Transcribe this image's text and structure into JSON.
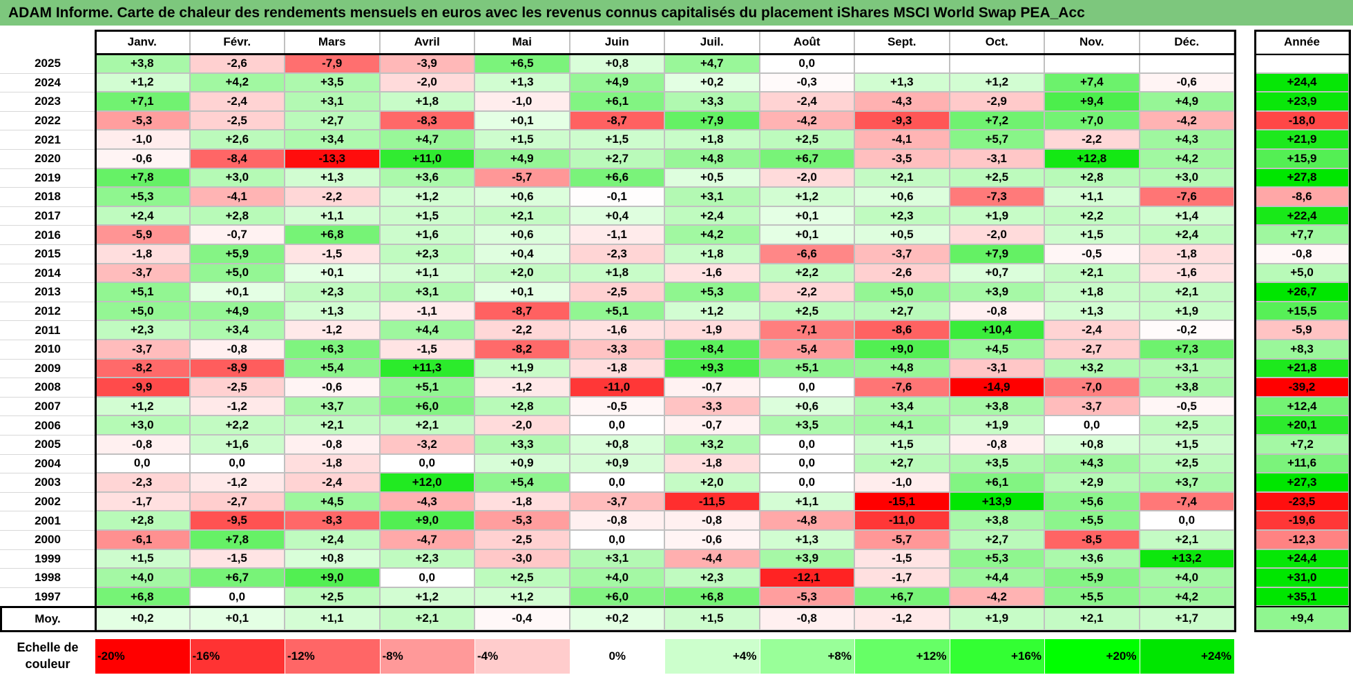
{
  "title": "ADAM Informe. Carte de chaleur des rendements mensuels en euros avec les revenus connus capitalisés du placement iShares MSCI World Swap PEA_Acc",
  "chart_data": {
    "type": "heatmap",
    "title": "ADAM Informe. Carte de chaleur des rendements mensuels en euros avec les revenus connus capitalisés du placement iShares MSCI World Swap PEA_Acc",
    "months": [
      "Janv.",
      "Févr.",
      "Mars",
      "Avril",
      "Mai",
      "Juin",
      "Juil.",
      "Août",
      "Sept.",
      "Oct.",
      "Nov.",
      "Déc."
    ],
    "annual_header": "Année",
    "average_label": "Moy.",
    "rows": [
      {
        "year": "2025",
        "values": [
          "+3,8",
          "-2,6",
          "-7,9",
          "-3,9",
          "+6,5",
          "+0,8",
          "+4,7",
          "0,0",
          "",
          "",
          "",
          ""
        ],
        "annual": ""
      },
      {
        "year": "2024",
        "values": [
          "+1,2",
          "+4,2",
          "+3,5",
          "-2,0",
          "+1,3",
          "+4,9",
          "+0,2",
          "-0,3",
          "+1,3",
          "+1,2",
          "+7,4",
          "-0,6"
        ],
        "annual": "+24,4"
      },
      {
        "year": "2023",
        "values": [
          "+7,1",
          "-2,4",
          "+3,1",
          "+1,8",
          "-1,0",
          "+6,1",
          "+3,3",
          "-2,4",
          "-4,3",
          "-2,9",
          "+9,4",
          "+4,9"
        ],
        "annual": "+23,9"
      },
      {
        "year": "2022",
        "values": [
          "-5,3",
          "-2,5",
          "+2,7",
          "-8,3",
          "+0,1",
          "-8,7",
          "+7,9",
          "-4,2",
          "-9,3",
          "+7,2",
          "+7,0",
          "-4,2"
        ],
        "annual": "-18,0"
      },
      {
        "year": "2021",
        "values": [
          "-1,0",
          "+2,6",
          "+3,4",
          "+4,7",
          "+1,5",
          "+1,5",
          "+1,8",
          "+2,5",
          "-4,1",
          "+5,7",
          "-2,2",
          "+4,3"
        ],
        "annual": "+21,9"
      },
      {
        "year": "2020",
        "values": [
          "-0,6",
          "-8,4",
          "-13,3",
          "+11,0",
          "+4,9",
          "+2,7",
          "+4,8",
          "+6,7",
          "-3,5",
          "-3,1",
          "+12,8",
          "+4,2"
        ],
        "annual": "+15,9"
      },
      {
        "year": "2019",
        "values": [
          "+7,8",
          "+3,0",
          "+1,3",
          "+3,6",
          "-5,7",
          "+6,6",
          "+0,5",
          "-2,0",
          "+2,1",
          "+2,5",
          "+2,8",
          "+3,0"
        ],
        "annual": "+27,8"
      },
      {
        "year": "2018",
        "values": [
          "+5,3",
          "-4,1",
          "-2,2",
          "+1,2",
          "+0,6",
          "-0,1",
          "+3,1",
          "+1,2",
          "+0,6",
          "-7,3",
          "+1,1",
          "-7,6"
        ],
        "annual": "-8,6"
      },
      {
        "year": "2017",
        "values": [
          "+2,4",
          "+2,8",
          "+1,1",
          "+1,5",
          "+2,1",
          "+0,4",
          "+2,4",
          "+0,1",
          "+2,3",
          "+1,9",
          "+2,2",
          "+1,4"
        ],
        "annual": "+22,4"
      },
      {
        "year": "2016",
        "values": [
          "-5,9",
          "-0,7",
          "+6,8",
          "+1,6",
          "+0,6",
          "-1,1",
          "+4,2",
          "+0,1",
          "+0,5",
          "-2,0",
          "+1,5",
          "+2,4"
        ],
        "annual": "+7,7"
      },
      {
        "year": "2015",
        "values": [
          "-1,8",
          "+5,9",
          "-1,5",
          "+2,3",
          "+0,4",
          "-2,3",
          "+1,8",
          "-6,6",
          "-3,7",
          "+7,9",
          "-0,5",
          "-1,8"
        ],
        "annual": "-0,8"
      },
      {
        "year": "2014",
        "values": [
          "-3,7",
          "+5,0",
          "+0,1",
          "+1,1",
          "+2,0",
          "+1,8",
          "-1,6",
          "+2,2",
          "-2,6",
          "+0,7",
          "+2,1",
          "-1,6"
        ],
        "annual": "+5,0"
      },
      {
        "year": "2013",
        "values": [
          "+5,1",
          "+0,1",
          "+2,3",
          "+3,1",
          "+0,1",
          "-2,5",
          "+5,3",
          "-2,2",
          "+5,0",
          "+3,9",
          "+1,8",
          "+2,1"
        ],
        "annual": "+26,7"
      },
      {
        "year": "2012",
        "values": [
          "+5,0",
          "+4,9",
          "+1,3",
          "-1,1",
          "-8,7",
          "+5,1",
          "+1,2",
          "+2,5",
          "+2,7",
          "-0,8",
          "+1,3",
          "+1,9"
        ],
        "annual": "+15,5"
      },
      {
        "year": "2011",
        "values": [
          "+2,3",
          "+3,4",
          "-1,2",
          "+4,4",
          "-2,2",
          "-1,6",
          "-1,9",
          "-7,1",
          "-8,6",
          "+10,4",
          "-2,4",
          "-0,2"
        ],
        "annual": "-5,9"
      },
      {
        "year": "2010",
        "values": [
          "-3,7",
          "-0,8",
          "+6,3",
          "-1,5",
          "-8,2",
          "-3,3",
          "+8,4",
          "-5,4",
          "+9,0",
          "+4,5",
          "-2,7",
          "+7,3"
        ],
        "annual": "+8,3"
      },
      {
        "year": "2009",
        "values": [
          "-8,2",
          "-8,9",
          "+5,4",
          "+11,3",
          "+1,9",
          "-1,8",
          "+9,3",
          "+5,1",
          "+4,8",
          "-3,1",
          "+3,2",
          "+3,1"
        ],
        "annual": "+21,8"
      },
      {
        "year": "2008",
        "values": [
          "-9,9",
          "-2,5",
          "-0,6",
          "+5,1",
          "-1,2",
          "-11,0",
          "-0,7",
          "0,0",
          "-7,6",
          "-14,9",
          "-7,0",
          "+3,8"
        ],
        "annual": "-39,2"
      },
      {
        "year": "2007",
        "values": [
          "+1,2",
          "-1,2",
          "+3,7",
          "+6,0",
          "+2,8",
          "-0,5",
          "-3,3",
          "+0,6",
          "+3,4",
          "+3,8",
          "-3,7",
          "-0,5"
        ],
        "annual": "+12,4"
      },
      {
        "year": "2006",
        "values": [
          "+3,0",
          "+2,2",
          "+2,1",
          "+2,1",
          "-2,0",
          "0,0",
          "-0,7",
          "+3,5",
          "+4,1",
          "+1,9",
          "0,0",
          "+2,5"
        ],
        "annual": "+20,1"
      },
      {
        "year": "2005",
        "values": [
          "-0,8",
          "+1,6",
          "-0,8",
          "-3,2",
          "+3,3",
          "+0,8",
          "+3,2",
          "0,0",
          "+1,5",
          "-0,8",
          "+0,8",
          "+1,5"
        ],
        "annual": "+7,2"
      },
      {
        "year": "2004",
        "values": [
          "0,0",
          "0,0",
          "-1,8",
          "0,0",
          "+0,9",
          "+0,9",
          "-1,8",
          "0,0",
          "+2,7",
          "+3,5",
          "+4,3",
          "+2,5"
        ],
        "annual": "+11,6"
      },
      {
        "year": "2003",
        "values": [
          "-2,3",
          "-1,2",
          "-2,4",
          "+12,0",
          "+5,4",
          "0,0",
          "+2,0",
          "0,0",
          "-1,0",
          "+6,1",
          "+2,9",
          "+3,7"
        ],
        "annual": "+27,3"
      },
      {
        "year": "2002",
        "values": [
          "-1,7",
          "-2,7",
          "+4,5",
          "-4,3",
          "-1,8",
          "-3,7",
          "-11,5",
          "+1,1",
          "-15,1",
          "+13,9",
          "+5,6",
          "-7,4"
        ],
        "annual": "-23,5"
      },
      {
        "year": "2001",
        "values": [
          "+2,8",
          "-9,5",
          "-8,3",
          "+9,0",
          "-5,3",
          "-0,8",
          "-0,8",
          "-4,8",
          "-11,0",
          "+3,8",
          "+5,5",
          "0,0"
        ],
        "annual": "-19,6"
      },
      {
        "year": "2000",
        "values": [
          "-6,1",
          "+7,8",
          "+2,4",
          "-4,7",
          "-2,5",
          "0,0",
          "-0,6",
          "+1,3",
          "-5,7",
          "+2,7",
          "-8,5",
          "+2,1"
        ],
        "annual": "-12,3"
      },
      {
        "year": "1999",
        "values": [
          "+1,5",
          "-1,5",
          "+0,8",
          "+2,3",
          "-3,0",
          "+3,1",
          "-4,4",
          "+3,9",
          "-1,5",
          "+5,3",
          "+3,6",
          "+13,2"
        ],
        "annual": "+24,4"
      },
      {
        "year": "1998",
        "values": [
          "+4,0",
          "+6,7",
          "+9,0",
          "0,0",
          "+2,5",
          "+4,0",
          "+2,3",
          "-12,1",
          "-1,7",
          "+4,4",
          "+5,9",
          "+4,0"
        ],
        "annual": "+31,0"
      },
      {
        "year": "1997",
        "values": [
          "+6,8",
          "0,0",
          "+2,5",
          "+1,2",
          "+1,2",
          "+6,0",
          "+6,8",
          "-5,3",
          "+6,7",
          "-4,2",
          "+5,5",
          "+4,2"
        ],
        "annual": "+35,1"
      }
    ],
    "average": {
      "values": [
        "+0,2",
        "+0,1",
        "+1,1",
        "+2,1",
        "-0,4",
        "+0,2",
        "+1,5",
        "-0,8",
        "-1,2",
        "+1,9",
        "+2,1",
        "+1,7"
      ],
      "annual": "+9,4"
    },
    "color_scale": {
      "label": "Echelle de couleur",
      "stops": [
        {
          "label": "-20%",
          "value": -20,
          "color": "#ff0000"
        },
        {
          "label": "-16%",
          "value": -16,
          "color": "#ff3333"
        },
        {
          "label": "-12%",
          "value": -12,
          "color": "#ff6666"
        },
        {
          "label": "-8%",
          "value": -8,
          "color": "#ff9999"
        },
        {
          "label": "-4%",
          "value": -4,
          "color": "#ffcccc"
        },
        {
          "label": "0%",
          "value": 0,
          "color": "#ffffff"
        },
        {
          "label": "+4%",
          "value": 4,
          "color": "#ccffcc"
        },
        {
          "label": "+8%",
          "value": 8,
          "color": "#99ff99"
        },
        {
          "label": "+12%",
          "value": 12,
          "color": "#66ff66"
        },
        {
          "label": "+16%",
          "value": 16,
          "color": "#33ff33"
        },
        {
          "label": "+20%",
          "value": 20,
          "color": "#00ff00"
        },
        {
          "label": "+24%",
          "value": 24,
          "color": "#00e600"
        }
      ]
    }
  }
}
